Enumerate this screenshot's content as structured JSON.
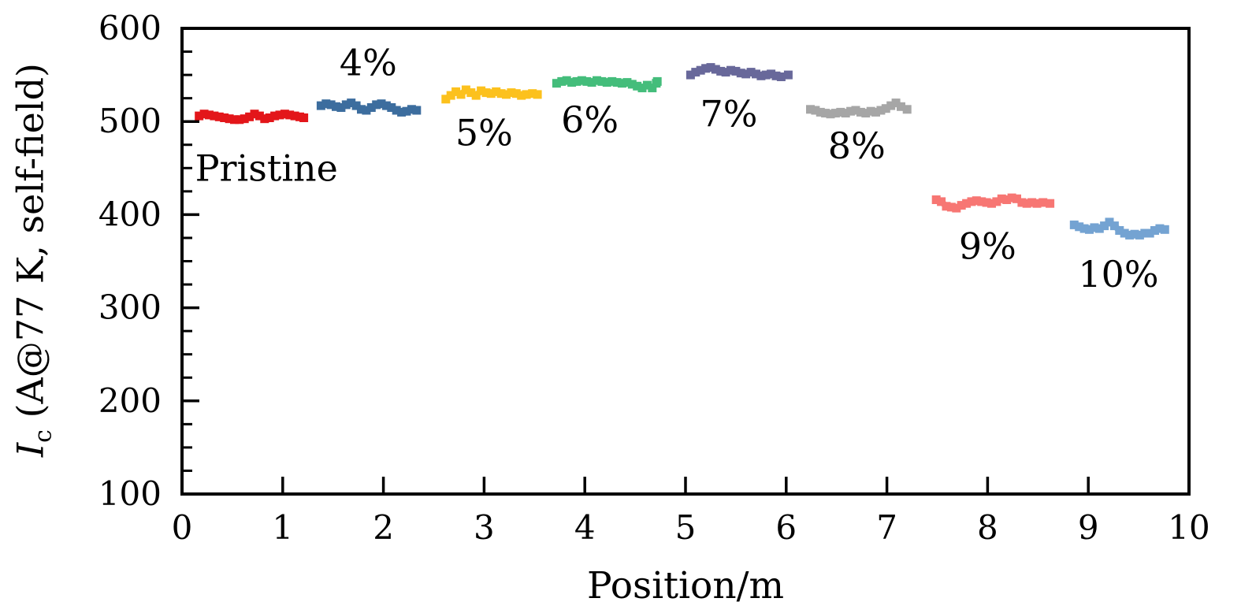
{
  "figure": {
    "background": "#ffffff",
    "axis_color": "#000000",
    "text_color": "#000000"
  },
  "chart_data": {
    "type": "line",
    "title": "",
    "xlabel": "Position/m",
    "ylabel": "Ic (A@77 K, self-field)",
    "ylabel_parts": {
      "symbol": "I",
      "subscript": "c",
      "rest": " (A@77 K, self-field)"
    },
    "xlim": [
      0,
      10
    ],
    "ylim": [
      100,
      600
    ],
    "x_ticks": [
      0,
      1,
      2,
      3,
      4,
      5,
      6,
      7,
      8,
      9,
      10
    ],
    "y_ticks": [
      100,
      200,
      300,
      400,
      500,
      600
    ],
    "y_minor_step": 25,
    "grid": false,
    "legend_position": "inline-annotations",
    "series": [
      {
        "id": "pristine",
        "name": "Pristine",
        "color": "#e3161a",
        "label": "Pristine",
        "label_x": 0.13,
        "label_y": 450,
        "label_anchor": "start",
        "points": [
          [
            0.17,
            506
          ],
          [
            0.22,
            508
          ],
          [
            0.27,
            507
          ],
          [
            0.32,
            506
          ],
          [
            0.37,
            505
          ],
          [
            0.42,
            504
          ],
          [
            0.47,
            503
          ],
          [
            0.52,
            502
          ],
          [
            0.57,
            502
          ],
          [
            0.62,
            503
          ],
          [
            0.67,
            505
          ],
          [
            0.72,
            508
          ],
          [
            0.77,
            506
          ],
          [
            0.82,
            503
          ],
          [
            0.87,
            504
          ],
          [
            0.92,
            506
          ],
          [
            0.97,
            507
          ],
          [
            1.02,
            508
          ],
          [
            1.07,
            507
          ],
          [
            1.12,
            506
          ],
          [
            1.17,
            505
          ],
          [
            1.21,
            504
          ]
        ]
      },
      {
        "id": "4pct",
        "name": "4%",
        "color": "#3c6d9e",
        "label": "4%",
        "label_x": 1.85,
        "label_y": 563,
        "label_anchor": "middle",
        "points": [
          [
            1.38,
            517
          ],
          [
            1.43,
            519
          ],
          [
            1.48,
            518
          ],
          [
            1.53,
            516
          ],
          [
            1.58,
            515
          ],
          [
            1.63,
            518
          ],
          [
            1.68,
            520
          ],
          [
            1.73,
            517
          ],
          [
            1.78,
            513
          ],
          [
            1.83,
            512
          ],
          [
            1.88,
            515
          ],
          [
            1.93,
            518
          ],
          [
            1.98,
            519
          ],
          [
            2.03,
            517
          ],
          [
            2.08,
            515
          ],
          [
            2.13,
            512
          ],
          [
            2.18,
            510
          ],
          [
            2.23,
            511
          ],
          [
            2.28,
            513
          ],
          [
            2.33,
            512
          ]
        ]
      },
      {
        "id": "5pct",
        "name": "5%",
        "color": "#fcc11d",
        "label": "5%",
        "label_x": 3.0,
        "label_y": 488,
        "label_anchor": "middle",
        "points": [
          [
            2.62,
            524
          ],
          [
            2.67,
            528
          ],
          [
            2.72,
            532
          ],
          [
            2.77,
            529
          ],
          [
            2.82,
            534
          ],
          [
            2.87,
            531
          ],
          [
            2.92,
            528
          ],
          [
            2.97,
            533
          ],
          [
            3.02,
            531
          ],
          [
            3.07,
            530
          ],
          [
            3.12,
            532
          ],
          [
            3.17,
            530
          ],
          [
            3.22,
            529
          ],
          [
            3.27,
            531
          ],
          [
            3.32,
            530
          ],
          [
            3.37,
            528
          ],
          [
            3.42,
            529
          ],
          [
            3.48,
            530
          ],
          [
            3.53,
            529
          ]
        ]
      },
      {
        "id": "6pct",
        "name": "6%",
        "color": "#44bd7b",
        "label": "6%",
        "label_x": 4.05,
        "label_y": 502,
        "label_anchor": "middle",
        "points": [
          [
            3.72,
            541
          ],
          [
            3.77,
            543
          ],
          [
            3.82,
            544
          ],
          [
            3.87,
            542
          ],
          [
            3.92,
            543
          ],
          [
            3.97,
            544
          ],
          [
            4.02,
            543
          ],
          [
            4.07,
            542
          ],
          [
            4.12,
            544
          ],
          [
            4.17,
            543
          ],
          [
            4.22,
            542
          ],
          [
            4.27,
            543
          ],
          [
            4.32,
            542
          ],
          [
            4.37,
            541
          ],
          [
            4.42,
            542
          ],
          [
            4.47,
            540
          ],
          [
            4.52,
            538
          ],
          [
            4.57,
            536
          ],
          [
            4.62,
            539
          ],
          [
            4.67,
            536
          ],
          [
            4.71,
            541
          ],
          [
            4.72,
            543
          ]
        ]
      },
      {
        "id": "7pct",
        "name": "7%",
        "color": "#68689a",
        "label": "7%",
        "label_x": 5.43,
        "label_y": 508,
        "label_anchor": "middle",
        "points": [
          [
            5.05,
            550
          ],
          [
            5.1,
            553
          ],
          [
            5.15,
            555
          ],
          [
            5.2,
            557
          ],
          [
            5.25,
            558
          ],
          [
            5.3,
            556
          ],
          [
            5.35,
            554
          ],
          [
            5.4,
            553
          ],
          [
            5.45,
            555
          ],
          [
            5.5,
            554
          ],
          [
            5.55,
            552
          ],
          [
            5.6,
            551
          ],
          [
            5.65,
            553
          ],
          [
            5.7,
            551
          ],
          [
            5.75,
            549
          ],
          [
            5.8,
            550
          ],
          [
            5.85,
            551
          ],
          [
            5.9,
            549
          ],
          [
            5.95,
            548
          ],
          [
            6.02,
            550
          ]
        ]
      },
      {
        "id": "8pct",
        "name": "8%",
        "color": "#a6a6a6",
        "label": "8%",
        "label_x": 6.7,
        "label_y": 474,
        "label_anchor": "middle",
        "points": [
          [
            6.24,
            513
          ],
          [
            6.29,
            512
          ],
          [
            6.34,
            510
          ],
          [
            6.39,
            509
          ],
          [
            6.44,
            508
          ],
          [
            6.49,
            509
          ],
          [
            6.54,
            510
          ],
          [
            6.59,
            509
          ],
          [
            6.64,
            511
          ],
          [
            6.69,
            512
          ],
          [
            6.74,
            510
          ],
          [
            6.79,
            509
          ],
          [
            6.84,
            511
          ],
          [
            6.89,
            510
          ],
          [
            6.94,
            512
          ],
          [
            6.99,
            514
          ],
          [
            7.04,
            517
          ],
          [
            7.09,
            520
          ],
          [
            7.14,
            516
          ],
          [
            7.2,
            513
          ]
        ]
      },
      {
        "id": "9pct",
        "name": "9%",
        "color": "#f77673",
        "label": "9%",
        "label_x": 8.0,
        "label_y": 366,
        "label_anchor": "middle",
        "points": [
          [
            7.49,
            416
          ],
          [
            7.54,
            414
          ],
          [
            7.59,
            409
          ],
          [
            7.64,
            408
          ],
          [
            7.69,
            407
          ],
          [
            7.74,
            410
          ],
          [
            7.79,
            412
          ],
          [
            7.84,
            414
          ],
          [
            7.89,
            415
          ],
          [
            7.94,
            414
          ],
          [
            7.99,
            413
          ],
          [
            8.04,
            412
          ],
          [
            8.09,
            414
          ],
          [
            8.14,
            417
          ],
          [
            8.19,
            416
          ],
          [
            8.24,
            418
          ],
          [
            8.29,
            417
          ],
          [
            8.34,
            413
          ],
          [
            8.39,
            412
          ],
          [
            8.44,
            413
          ],
          [
            8.49,
            412
          ],
          [
            8.55,
            413
          ],
          [
            8.62,
            412
          ]
        ]
      },
      {
        "id": "10pct",
        "name": "10%",
        "color": "#74a3d2",
        "label": "10%",
        "label_x": 9.3,
        "label_y": 336,
        "label_anchor": "middle",
        "points": [
          [
            8.86,
            389
          ],
          [
            8.91,
            387
          ],
          [
            8.96,
            385
          ],
          [
            9.01,
            384
          ],
          [
            9.06,
            386
          ],
          [
            9.11,
            385
          ],
          [
            9.16,
            388
          ],
          [
            9.21,
            392
          ],
          [
            9.26,
            388
          ],
          [
            9.31,
            383
          ],
          [
            9.36,
            380
          ],
          [
            9.41,
            378
          ],
          [
            9.46,
            379
          ],
          [
            9.51,
            378
          ],
          [
            9.56,
            380
          ],
          [
            9.61,
            380
          ],
          [
            9.66,
            383
          ],
          [
            9.71,
            385
          ],
          [
            9.76,
            384
          ]
        ]
      }
    ]
  }
}
